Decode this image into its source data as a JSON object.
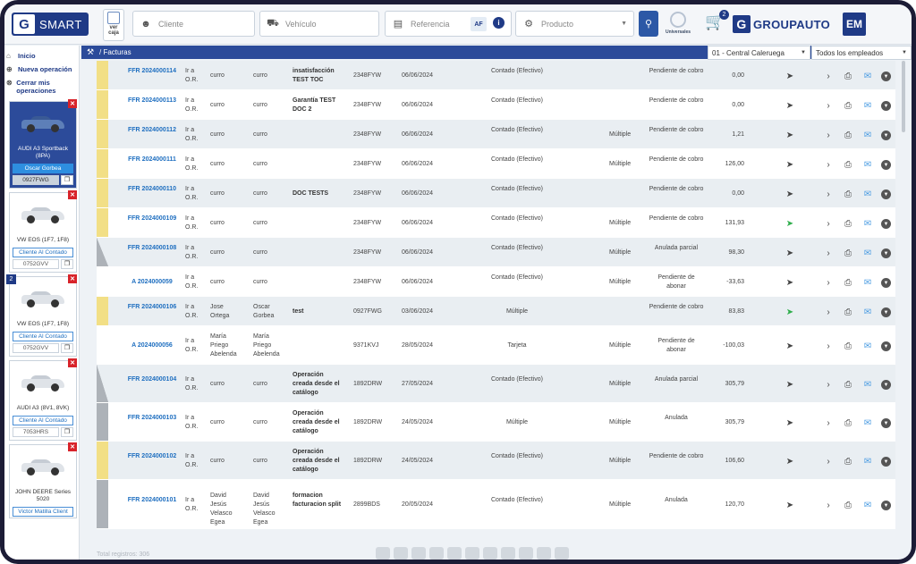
{
  "app": {
    "logo_text": "SMART",
    "brand": "GROUPAUTO",
    "user_initials": "EM"
  },
  "toolbar": {
    "ver_caja": "ver caja",
    "cliente_placeholder": "Cliente",
    "vehiculo_placeholder": "Vehículo",
    "referencia_placeholder": "Referencia",
    "af_label": "AF",
    "info_label": "i",
    "producto_placeholder": "Producto",
    "universales": "Universales",
    "cart_count": "2"
  },
  "nav": {
    "inicio": "Inicio",
    "nueva_operacion": "Nueva operación",
    "cerrar_operaciones": "Cerrar mis operaciones"
  },
  "vehicles": [
    {
      "name": "AUDI A3 Sportback (8PA)",
      "client": "Oscar Gorbea",
      "plate": "0927FWG",
      "active": true,
      "badge": ""
    },
    {
      "name": "VW EOS (1F7, 1F8)",
      "client": "Cliente Al Contado",
      "plate": "0752GVV",
      "active": false,
      "badge": ""
    },
    {
      "name": "VW EOS (1F7, 1F8)",
      "client": "Cliente Al Contado",
      "plate": "0752GVV",
      "active": false,
      "badge": "2"
    },
    {
      "name": "AUDI A3 (8V1, 8VK)",
      "client": "Cliente Al Contado",
      "plate": "7053HRS",
      "active": false,
      "badge": ""
    },
    {
      "name": "JOHN DEERE Series 5020",
      "client": "Victor Matilla Client",
      "plate": "",
      "active": false,
      "badge": ""
    }
  ],
  "breadcrumb": {
    "section": "Facturas"
  },
  "filters": {
    "store": "01 - Central Caleruega",
    "employees": "Todos los empleados"
  },
  "rows": [
    {
      "num": "FFR 2024000114",
      "origin": "Ir a O.R.",
      "emp1": "curro",
      "emp2": "curro",
      "desc": "insatisfacción TEST TOC",
      "plate": "2348FYW",
      "date": "06/06/2024",
      "pay": "Contado (Efectivo)",
      "mult": "",
      "status": "Pendiente de cobro",
      "amount": "0,00",
      "mark": "yellow",
      "sent": false
    },
    {
      "num": "FFR 2024000113",
      "origin": "Ir a O.R.",
      "emp1": "curro",
      "emp2": "curro",
      "desc": "Garantía TEST DOC 2",
      "plate": "2348FYW",
      "date": "06/06/2024",
      "pay": "Contado (Efectivo)",
      "mult": "",
      "status": "Pendiente de cobro",
      "amount": "0,00",
      "mark": "yellow",
      "sent": false
    },
    {
      "num": "FFR 2024000112",
      "origin": "Ir a O.R.",
      "emp1": "curro",
      "emp2": "curro",
      "desc": "",
      "plate": "2348FYW",
      "date": "06/06/2024",
      "pay": "Contado (Efectivo)",
      "mult": "Múltiple",
      "status": "Pendiente de cobro",
      "amount": "1,21",
      "mark": "yellow",
      "sent": false
    },
    {
      "num": "FFR 2024000111",
      "origin": "Ir a O.R.",
      "emp1": "curro",
      "emp2": "curro",
      "desc": "",
      "plate": "2348FYW",
      "date": "06/06/2024",
      "pay": "Contado (Efectivo)",
      "mult": "Múltiple",
      "status": "Pendiente de cobro",
      "amount": "126,00",
      "mark": "yellow",
      "sent": false
    },
    {
      "num": "FFR 2024000110",
      "origin": "Ir a O.R.",
      "emp1": "curro",
      "emp2": "curro",
      "desc": "DOC TESTS",
      "plate": "2348FYW",
      "date": "06/06/2024",
      "pay": "Contado (Efectivo)",
      "mult": "",
      "status": "Pendiente de cobro",
      "amount": "0,00",
      "mark": "yellow",
      "sent": false
    },
    {
      "num": "FFR 2024000109",
      "origin": "Ir a O.R.",
      "emp1": "curro",
      "emp2": "curro",
      "desc": "",
      "plate": "2348FYW",
      "date": "06/06/2024",
      "pay": "Contado (Efectivo)",
      "mult": "Múltiple",
      "status": "Pendiente de cobro",
      "amount": "131,93",
      "mark": "yellow",
      "sent": true
    },
    {
      "num": "FFR 2024000108",
      "origin": "Ir a O.R.",
      "emp1": "curro",
      "emp2": "curro",
      "desc": "",
      "plate": "2348FYW",
      "date": "06/06/2024",
      "pay": "Contado (Efectivo)",
      "mult": "Múltiple",
      "status": "Anulada parcial",
      "amount": "98,30",
      "mark": "tri",
      "sent": false
    },
    {
      "num": "A 2024000059",
      "origin": "Ir a O.R.",
      "emp1": "curro",
      "emp2": "curro",
      "desc": "",
      "plate": "2348FYW",
      "date": "06/06/2024",
      "pay": "Contado (Efectivo)",
      "mult": "Múltiple",
      "status": "Pendiente de abonar",
      "amount": "-33,63",
      "mark": "none",
      "sent": false
    },
    {
      "num": "FFR 2024000106",
      "origin": "Ir a O.R.",
      "emp1": "Jose Ortega",
      "emp2": "Oscar Gorbea",
      "desc": "test",
      "plate": "0927FWG",
      "date": "03/06/2024",
      "pay": "Múltiple",
      "mult": "",
      "status": "Pendiente de cobro",
      "amount": "83,83",
      "mark": "yellow",
      "sent": true
    },
    {
      "num": "A 2024000056",
      "origin": "Ir a O.R.",
      "emp1": "María Priego Abelenda",
      "emp2": "María Priego Abelenda",
      "desc": "",
      "plate": "9371KVJ",
      "date": "28/05/2024",
      "pay": "Tarjeta",
      "mult": "Múltiple",
      "status": "Pendiente de abonar",
      "amount": "-100,03",
      "mark": "none",
      "sent": false
    },
    {
      "num": "FFR 2024000104",
      "origin": "Ir a O.R.",
      "emp1": "curro",
      "emp2": "curro",
      "desc": "Operación creada desde el catálogo",
      "plate": "1892DRW",
      "date": "27/05/2024",
      "pay": "Contado (Efectivo)",
      "mult": "Múltiple",
      "status": "Anulada parcial",
      "amount": "305,79",
      "mark": "tri",
      "sent": false
    },
    {
      "num": "FFR 2024000103",
      "origin": "Ir a O.R.",
      "emp1": "curro",
      "emp2": "curro",
      "desc": "Operación creada desde el catálogo",
      "plate": "1892DRW",
      "date": "24/05/2024",
      "pay": "Múltiple",
      "mult": "Múltiple",
      "status": "Anulada",
      "amount": "305,79",
      "mark": "gray",
      "sent": false
    },
    {
      "num": "FFR 2024000102",
      "origin": "Ir a O.R.",
      "emp1": "curro",
      "emp2": "curro",
      "desc": "Operación creada desde el catálogo",
      "plate": "1892DRW",
      "date": "24/05/2024",
      "pay": "Contado (Efectivo)",
      "mult": "Múltiple",
      "status": "Pendiente de cobro",
      "amount": "106,60",
      "mark": "yellow",
      "sent": false
    },
    {
      "num": "FFR 2024000101",
      "origin": "Ir a O.R.",
      "emp1": "David Jesús Velasco Egea",
      "emp2": "David Jesús Velasco Egea",
      "desc": "formacion facturacion split",
      "plate": "2899BDS",
      "date": "20/05/2024",
      "pay": "Contado (Efectivo)",
      "mult": "Múltiple",
      "status": "Anulada",
      "amount": "120,70",
      "mark": "gray",
      "sent": false
    }
  ],
  "footer": {
    "total": "Total registros: 306"
  }
}
